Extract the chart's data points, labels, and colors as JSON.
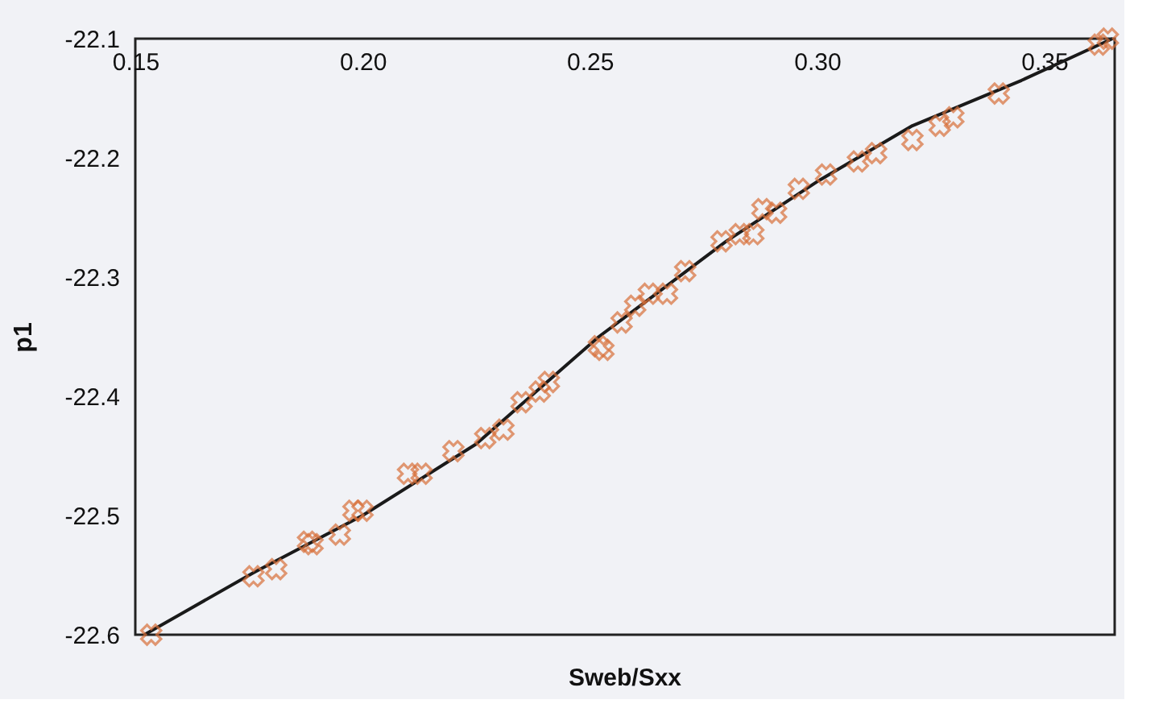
{
  "chart_data": {
    "type": "scatter",
    "xlabel": "Sweb/Sxx",
    "ylabel": "p1",
    "xlim": [
      0.15,
      0.3655
    ],
    "xticks": [
      {
        "value": 0.15,
        "label": "0.15"
      },
      {
        "value": 0.2,
        "label": "0.20"
      },
      {
        "value": 0.25,
        "label": "0.25"
      },
      {
        "value": 0.3,
        "label": "0.30"
      },
      {
        "value": 0.35,
        "label": "0.35"
      }
    ],
    "ylim": [
      -22.6,
      -22.1
    ],
    "yticks": [
      -22.6,
      -22.5,
      -22.4,
      -22.3,
      -22.2,
      -22.1
    ],
    "grid": false,
    "series": [
      {
        "color": "#d8703a",
        "marker": "cross",
        "x": [
          0.1535,
          0.176,
          0.181,
          0.188,
          0.189,
          0.195,
          0.198,
          0.2,
          0.21,
          0.213,
          0.22,
          0.227,
          0.231,
          0.235,
          0.239,
          0.241,
          0.252,
          0.253,
          0.257,
          0.26,
          0.263,
          0.267,
          0.271,
          0.279,
          0.283,
          0.286,
          0.288,
          0.291,
          0.296,
          0.302,
          0.309,
          0.313,
          0.321,
          0.327,
          0.33,
          0.34,
          0.362,
          0.364
        ],
        "values": [
          -22.6,
          -22.551,
          -22.545,
          -22.522,
          -22.524,
          -22.516,
          -22.496,
          -22.496,
          -22.465,
          -22.465,
          -22.446,
          -22.435,
          -22.428,
          -22.405,
          -22.396,
          -22.388,
          -22.358,
          -22.361,
          -22.338,
          -22.324,
          -22.314,
          -22.314,
          -22.295,
          -22.27,
          -22.264,
          -22.264,
          -22.243,
          -22.246,
          -22.226,
          -22.214,
          -22.203,
          -22.196,
          -22.185,
          -22.173,
          -22.166,
          -22.146,
          -22.105,
          -22.1
        ]
      },
      {
        "type": "line",
        "color": "#1a1a1a",
        "line_style": "solid",
        "x": [
          0.152,
          0.176,
          0.2,
          0.225,
          0.252,
          0.28,
          0.3,
          0.321,
          0.345,
          0.365
        ],
        "values": [
          -22.6,
          -22.548,
          -22.5,
          -22.44,
          -22.35,
          -22.27,
          -22.22,
          -22.173,
          -22.135,
          -22.1
        ]
      }
    ]
  }
}
